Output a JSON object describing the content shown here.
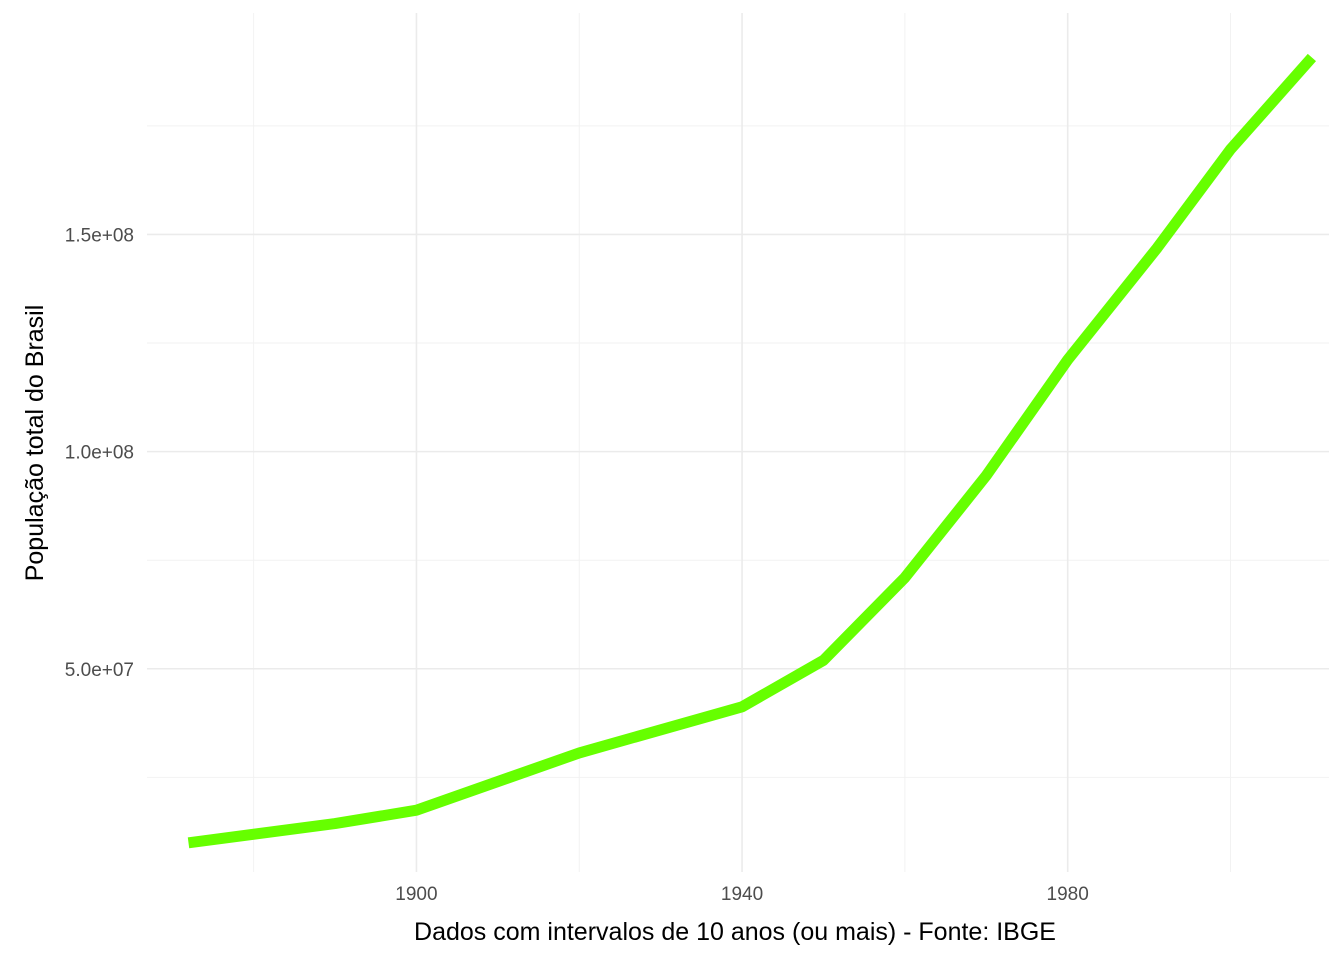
{
  "chart_data": {
    "type": "line",
    "title": "",
    "xlabel": "Dados com intervalos de 10 anos (ou mais) - Fonte: IBGE",
    "ylabel": "População total do Brasil",
    "x_ticks": [
      1900,
      1940,
      1980
    ],
    "x_tick_labels": [
      "1900",
      "1940",
      "1980"
    ],
    "y_ticks": [
      50000000,
      100000000,
      150000000
    ],
    "y_tick_labels": [
      "5.0e+07",
      "1.0e+08",
      "1.5e+08"
    ],
    "xlim": [
      1866.9,
      2012.1
    ],
    "ylim": [
      3200000,
      201000000
    ],
    "grid": true,
    "legend": "none",
    "series": [
      {
        "color": "#66FF00",
        "x": [
          1872,
          1890,
          1900,
          1920,
          1940,
          1950,
          1960,
          1970,
          1980,
          1991,
          2000,
          2010
        ],
        "y": [
          9930478,
          14333915,
          17438434,
          30635605,
          41236315,
          51944397,
          70992343,
          94508583,
          121150573,
          146917459,
          169590693,
          190755799
        ]
      }
    ]
  }
}
